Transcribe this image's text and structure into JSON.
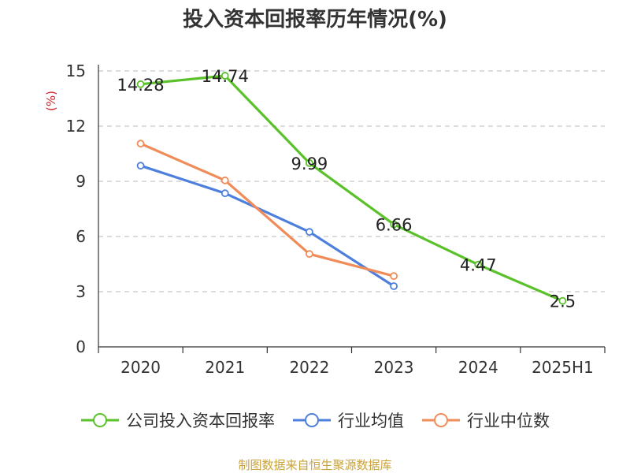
{
  "title": "投入资本回报率历年情况(%)",
  "source_note": "制图数据来自恒生聚源数据库",
  "chart_data": {
    "type": "line",
    "title": "投入资本回报率历年情况(%)",
    "ylabel": "(%)",
    "xlabel": "",
    "categories": [
      "2020",
      "2021",
      "2022",
      "2023",
      "2024",
      "2025H1"
    ],
    "ylim": [
      0,
      15
    ],
    "yticks": [
      "0",
      "3",
      "6",
      "9",
      "12",
      "15"
    ],
    "grid": true,
    "legend_position": "bottom",
    "series": [
      {
        "name": "公司投入资本回报率",
        "color": "#5ac12a",
        "values": [
          14.28,
          14.74,
          9.99,
          6.66,
          4.47,
          2.5
        ],
        "labels": [
          "14.28",
          "14.74",
          "9.99",
          "6.66",
          "4.47",
          "2.5"
        ]
      },
      {
        "name": "行业均值",
        "color": "#4e7fdc",
        "values": [
          9.85,
          8.35,
          6.25,
          3.3,
          null,
          null
        ]
      },
      {
        "name": "行业中位数",
        "color": "#f08c5a",
        "values": [
          11.05,
          9.05,
          5.05,
          3.85,
          null,
          null
        ]
      }
    ]
  }
}
